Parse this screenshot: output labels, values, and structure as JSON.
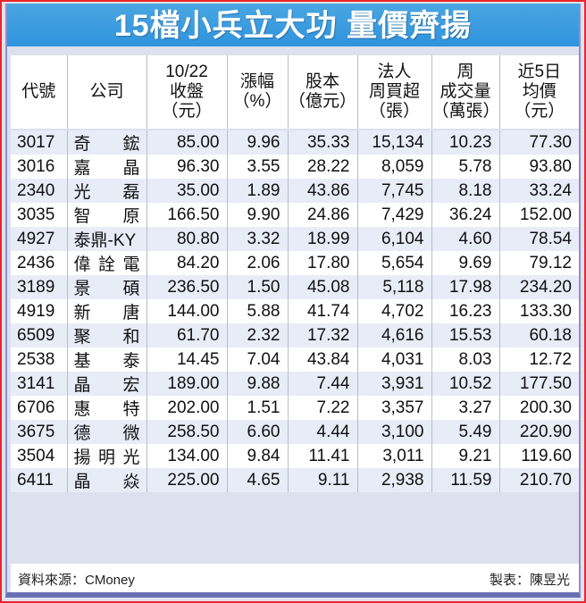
{
  "title": "15檔小兵立大功 量價齊揚",
  "table": {
    "headers": [
      {
        "lines": [
          "代號"
        ]
      },
      {
        "lines": [
          "公司"
        ]
      },
      {
        "lines": [
          "10/22",
          "收盤",
          "（元）"
        ]
      },
      {
        "lines": [
          "漲幅",
          "（%）"
        ]
      },
      {
        "lines": [
          "股本",
          "（億元）"
        ]
      },
      {
        "lines": [
          "法人",
          "周買超",
          "（張）"
        ]
      },
      {
        "lines": [
          "周",
          "成交量",
          "（萬張）"
        ]
      },
      {
        "lines": [
          "近5日",
          "均價",
          "（元）"
        ]
      }
    ],
    "rows": [
      {
        "code": "3017",
        "company": [
          "奇",
          "鋐"
        ],
        "close": "85.00",
        "change_pct": "9.96",
        "capital": "35.33",
        "inst_net_buy": "15,134",
        "weekly_volume": "10.23",
        "avg5": "77.30"
      },
      {
        "code": "3016",
        "company": [
          "嘉",
          "晶"
        ],
        "close": "96.30",
        "change_pct": "3.55",
        "capital": "28.22",
        "inst_net_buy": "8,059",
        "weekly_volume": "5.78",
        "avg5": "93.80"
      },
      {
        "code": "2340",
        "company": [
          "光",
          "磊"
        ],
        "close": "35.00",
        "change_pct": "1.89",
        "capital": "43.86",
        "inst_net_buy": "7,745",
        "weekly_volume": "8.18",
        "avg5": "33.24"
      },
      {
        "code": "3035",
        "company": [
          "智",
          "原"
        ],
        "close": "166.50",
        "change_pct": "9.90",
        "capital": "24.86",
        "inst_net_buy": "7,429",
        "weekly_volume": "36.24",
        "avg5": "152.00"
      },
      {
        "code": "4927",
        "company": [
          "泰鼎-KY"
        ],
        "close": "80.80",
        "change_pct": "3.32",
        "capital": "18.99",
        "inst_net_buy": "6,104",
        "weekly_volume": "4.60",
        "avg5": "78.54"
      },
      {
        "code": "2436",
        "company": [
          "偉",
          "詮",
          "電"
        ],
        "close": "84.20",
        "change_pct": "2.06",
        "capital": "17.80",
        "inst_net_buy": "5,654",
        "weekly_volume": "9.69",
        "avg5": "79.12"
      },
      {
        "code": "3189",
        "company": [
          "景",
          "碩"
        ],
        "close": "236.50",
        "change_pct": "1.50",
        "capital": "45.08",
        "inst_net_buy": "5,118",
        "weekly_volume": "17.98",
        "avg5": "234.20"
      },
      {
        "code": "4919",
        "company": [
          "新",
          "唐"
        ],
        "close": "144.00",
        "change_pct": "5.88",
        "capital": "41.74",
        "inst_net_buy": "4,702",
        "weekly_volume": "16.23",
        "avg5": "133.30"
      },
      {
        "code": "6509",
        "company": [
          "聚",
          "和"
        ],
        "close": "61.70",
        "change_pct": "2.32",
        "capital": "17.32",
        "inst_net_buy": "4,616",
        "weekly_volume": "15.53",
        "avg5": "60.18"
      },
      {
        "code": "2538",
        "company": [
          "基",
          "泰"
        ],
        "close": "14.45",
        "change_pct": "7.04",
        "capital": "43.84",
        "inst_net_buy": "4,031",
        "weekly_volume": "8.03",
        "avg5": "12.72"
      },
      {
        "code": "3141",
        "company": [
          "晶",
          "宏"
        ],
        "close": "189.00",
        "change_pct": "9.88",
        "capital": "7.44",
        "inst_net_buy": "3,931",
        "weekly_volume": "10.52",
        "avg5": "177.50"
      },
      {
        "code": "6706",
        "company": [
          "惠",
          "特"
        ],
        "close": "202.00",
        "change_pct": "1.51",
        "capital": "7.22",
        "inst_net_buy": "3,357",
        "weekly_volume": "3.27",
        "avg5": "200.30"
      },
      {
        "code": "3675",
        "company": [
          "德",
          "微"
        ],
        "close": "258.50",
        "change_pct": "6.60",
        "capital": "4.44",
        "inst_net_buy": "3,100",
        "weekly_volume": "5.49",
        "avg5": "220.90"
      },
      {
        "code": "3504",
        "company": [
          "揚",
          "明",
          "光"
        ],
        "close": "134.00",
        "change_pct": "9.84",
        "capital": "11.41",
        "inst_net_buy": "3,011",
        "weekly_volume": "9.21",
        "avg5": "119.60"
      },
      {
        "code": "6411",
        "company": [
          "晶",
          "焱"
        ],
        "close": "225.00",
        "change_pct": "4.65",
        "capital": "9.11",
        "inst_net_buy": "2,938",
        "weekly_volume": "11.59",
        "avg5": "210.70"
      }
    ]
  },
  "footer": {
    "source": "資料來源：CMoney",
    "credit": "製表：陳昱光"
  },
  "colors": {
    "title_bg": "#3a9be0",
    "outer_border": "#e8262b",
    "bottom_bar": "#6b70b2",
    "stripe": "#e8ecf7"
  }
}
